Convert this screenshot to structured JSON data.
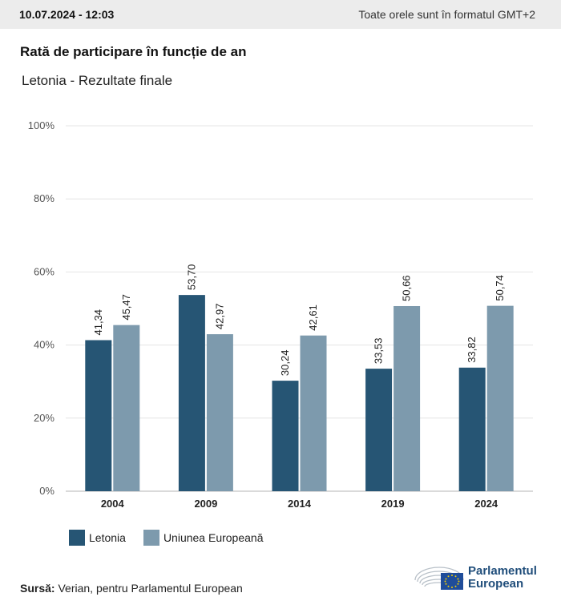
{
  "header": {
    "timestamp": "10.07.2024 - 12:03",
    "timezone_note": "Toate orele sunt în formatul GMT+2"
  },
  "title": "Rată de participare în funcție de an",
  "subtitle": "Letonia - Rezultate finale",
  "colors": {
    "letonia": "#265574",
    "ue": "#7d9aad"
  },
  "chart_data": {
    "type": "bar",
    "categories": [
      "2004",
      "2009",
      "2014",
      "2019",
      "2024"
    ],
    "series": [
      {
        "name": "Letonia",
        "values": [
          41.34,
          53.7,
          30.24,
          33.53,
          33.82
        ],
        "labels": [
          "41,34",
          "53,70",
          "30,24",
          "33,53",
          "33,82"
        ]
      },
      {
        "name": "Uniunea Europeană",
        "values": [
          45.47,
          42.97,
          42.61,
          50.66,
          50.74
        ],
        "labels": [
          "45,47",
          "42,97",
          "42,61",
          "50,66",
          "50,74"
        ]
      }
    ],
    "ylim": [
      0,
      100
    ],
    "yticks": [
      "0%",
      "20%",
      "40%",
      "60%",
      "80%",
      "100%"
    ],
    "grid": true,
    "legend": "bottom-left"
  },
  "legend": {
    "items": [
      "Letonia",
      "Uniunea Europeană"
    ]
  },
  "source": {
    "label": "Sursă:",
    "text": "Verian, pentru Parlamentul European"
  },
  "logo": {
    "line1": "Parlamentul",
    "line2": "European"
  }
}
